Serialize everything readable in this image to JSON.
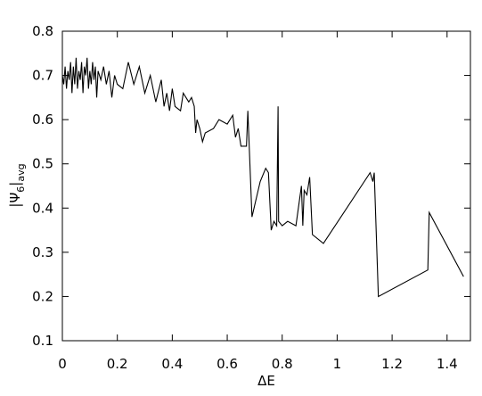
{
  "chart_data": {
    "type": "line",
    "x_label": "ΔE",
    "y_label_parts": [
      "|Ψ",
      "6",
      "|",
      "avg"
    ],
    "xlim": [
      0,
      1.485
    ],
    "ylim": [
      0.1,
      0.8
    ],
    "xticks": [
      0,
      0.2,
      0.4,
      0.6,
      0.8,
      1,
      1.2,
      1.4
    ],
    "yticks": [
      0.1,
      0.2,
      0.3,
      0.4,
      0.5,
      0.6,
      0.7,
      0.8
    ],
    "series": [
      {
        "color": "#000000",
        "x": [
          0,
          0.005,
          0.01,
          0.015,
          0.02,
          0.025,
          0.03,
          0.035,
          0.04,
          0.045,
          0.05,
          0.055,
          0.06,
          0.065,
          0.07,
          0.075,
          0.08,
          0.085,
          0.09,
          0.095,
          0.1,
          0.105,
          0.11,
          0.115,
          0.12,
          0.125,
          0.13,
          0.14,
          0.15,
          0.16,
          0.17,
          0.18,
          0.19,
          0.2,
          0.22,
          0.24,
          0.26,
          0.28,
          0.3,
          0.32,
          0.34,
          0.36,
          0.37,
          0.38,
          0.39,
          0.4,
          0.41,
          0.43,
          0.44,
          0.46,
          0.47,
          0.48,
          0.485,
          0.49,
          0.5,
          0.51,
          0.52,
          0.55,
          0.57,
          0.6,
          0.62,
          0.63,
          0.64,
          0.65,
          0.66,
          0.67,
          0.675,
          0.69,
          0.72,
          0.74,
          0.75,
          0.76,
          0.77,
          0.78,
          0.785,
          0.787,
          0.8,
          0.82,
          0.85,
          0.87,
          0.875,
          0.88,
          0.89,
          0.9,
          0.91,
          0.95,
          1.12,
          1.13,
          1.135,
          1.15,
          1.33,
          1.335,
          1.46
        ],
        "values": [
          0.7,
          0.68,
          0.72,
          0.67,
          0.71,
          0.69,
          0.73,
          0.66,
          0.72,
          0.68,
          0.74,
          0.67,
          0.71,
          0.69,
          0.73,
          0.66,
          0.72,
          0.7,
          0.74,
          0.67,
          0.71,
          0.68,
          0.73,
          0.69,
          0.72,
          0.65,
          0.71,
          0.69,
          0.72,
          0.68,
          0.71,
          0.65,
          0.7,
          0.68,
          0.67,
          0.73,
          0.68,
          0.72,
          0.66,
          0.7,
          0.64,
          0.69,
          0.63,
          0.66,
          0.62,
          0.67,
          0.63,
          0.62,
          0.66,
          0.64,
          0.65,
          0.63,
          0.57,
          0.6,
          0.58,
          0.55,
          0.57,
          0.58,
          0.6,
          0.59,
          0.61,
          0.56,
          0.58,
          0.54,
          0.54,
          0.54,
          0.62,
          0.38,
          0.46,
          0.49,
          0.48,
          0.35,
          0.37,
          0.36,
          0.63,
          0.37,
          0.36,
          0.37,
          0.36,
          0.45,
          0.36,
          0.44,
          0.43,
          0.47,
          0.34,
          0.32,
          0.48,
          0.46,
          0.48,
          0.2,
          0.26,
          0.39,
          0.245
        ]
      }
    ]
  }
}
